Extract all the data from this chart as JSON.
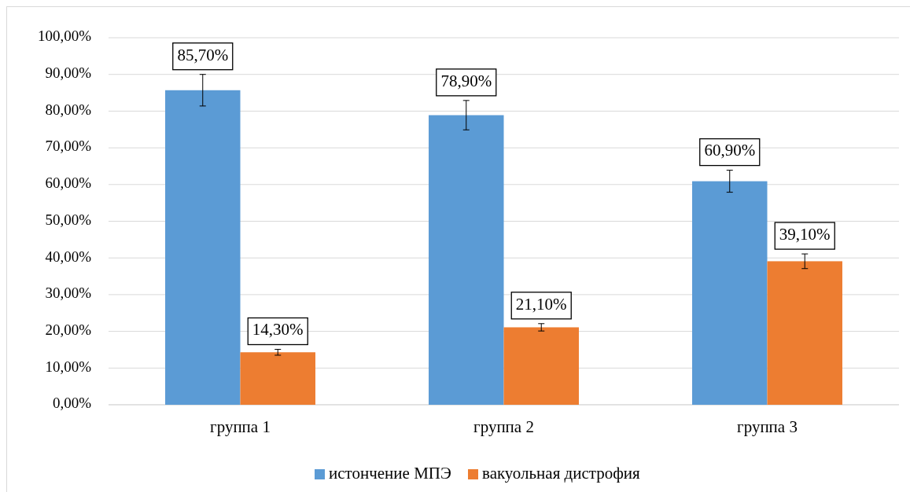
{
  "chart_data": {
    "type": "bar",
    "categories": [
      "группа 1",
      "группа 2",
      "группа 3"
    ],
    "series": [
      {
        "name": "истончение МПЭ",
        "color": "#5b9bd5",
        "values": [
          85.7,
          78.9,
          60.9
        ],
        "errors": [
          4.3,
          4,
          3
        ],
        "value_labels": [
          "85,70%",
          "78,90%",
          "60,90%"
        ]
      },
      {
        "name": "вакуольная дистрофия",
        "color": "#ed7d31",
        "values": [
          14.3,
          21.1,
          39.1
        ],
        "errors": [
          0.8,
          1,
          2
        ],
        "value_labels": [
          "14,30%",
          "21,10%",
          "39,10%"
        ]
      }
    ],
    "ylim": [
      0,
      100
    ],
    "yticks": [
      {
        "value": 0,
        "label": "0,00%"
      },
      {
        "value": 10,
        "label": "10,00%"
      },
      {
        "value": 20,
        "label": "20,00%"
      },
      {
        "value": 30,
        "label": "30,00%"
      },
      {
        "value": 40,
        "label": "40,00%"
      },
      {
        "value": 50,
        "label": "50,00%"
      },
      {
        "value": 60,
        "label": "60,00%"
      },
      {
        "value": 70,
        "label": "70,00%"
      },
      {
        "value": 80,
        "label": "80,00%"
      },
      {
        "value": 90,
        "label": "90,00%"
      },
      {
        "value": 100,
        "label": "100,00%"
      }
    ],
    "grid": "y",
    "legend": "bottom"
  }
}
